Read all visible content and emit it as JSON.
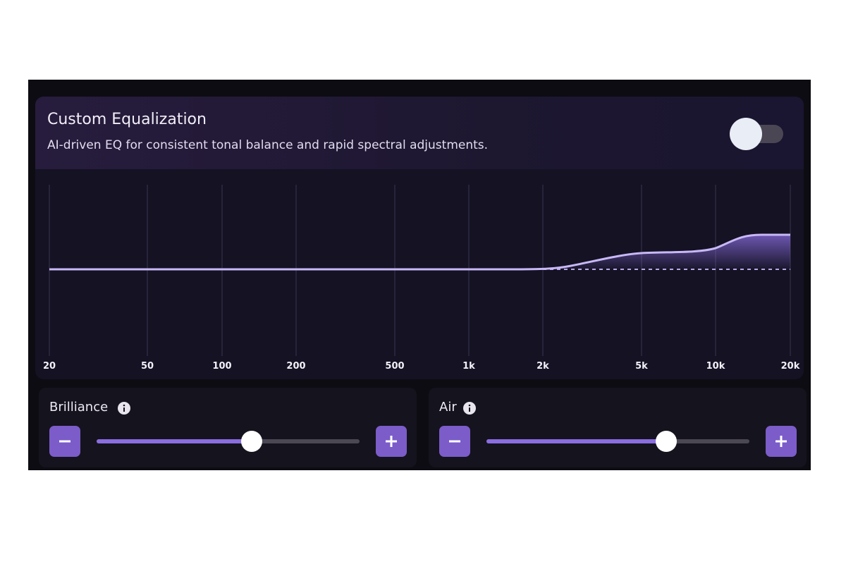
{
  "header": {
    "title": "Custom Equalization",
    "subtitle": "AI-driven EQ for consistent tonal balance and rapid spectral adjustments."
  },
  "graph": {
    "frequency_labels": [
      "20",
      "50",
      "100",
      "200",
      "500",
      "1k",
      "2k",
      "5k",
      "10k",
      "20k"
    ]
  },
  "controls": [
    {
      "label": "Brilliance"
    },
    {
      "label": "Air"
    }
  ]
}
